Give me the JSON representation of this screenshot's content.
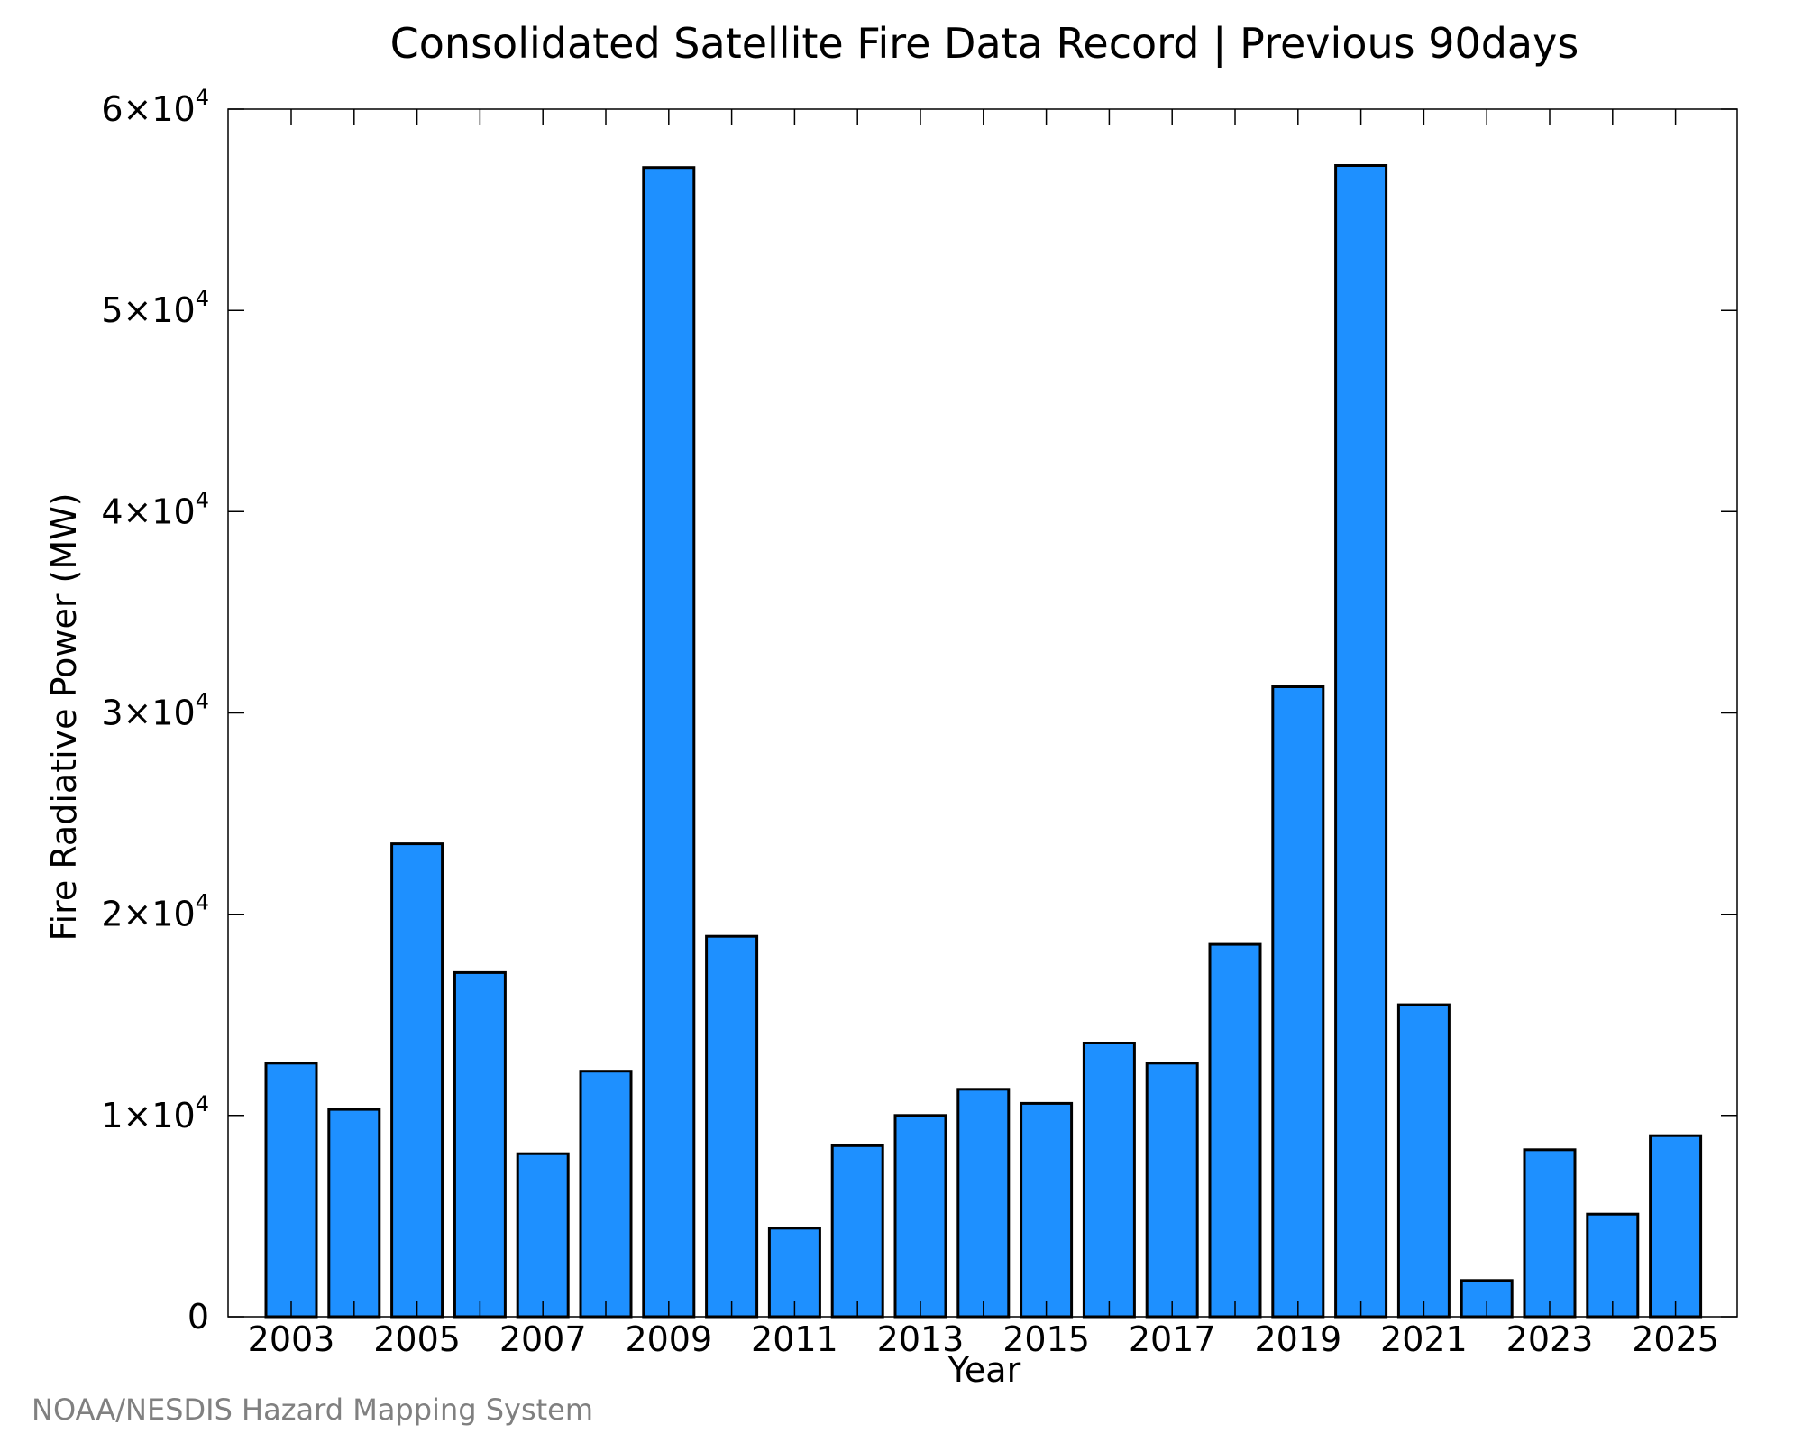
{
  "chart_data": {
    "type": "bar",
    "title": "Consolidated Satellite Fire Data Record | Previous 90days",
    "xlabel": "Year",
    "ylabel": "Fire Radiative Power (MW)",
    "categories": [
      "2003",
      "2004",
      "2005",
      "2006",
      "2007",
      "2008",
      "2009",
      "2010",
      "2011",
      "2012",
      "2013",
      "2014",
      "2015",
      "2016",
      "2017",
      "2018",
      "2019",
      "2020",
      "2021",
      "2022",
      "2023",
      "2024",
      "2025"
    ],
    "x_tick_labels": [
      "2003",
      "2005",
      "2007",
      "2009",
      "2011",
      "2013",
      "2015",
      "2017",
      "2019",
      "2021",
      "2023",
      "2025"
    ],
    "values": [
      12600,
      10300,
      23500,
      17100,
      8100,
      12200,
      57100,
      18900,
      4400,
      8500,
      10000,
      11300,
      10600,
      13600,
      12600,
      18500,
      31300,
      57200,
      15500,
      1800,
      8300,
      5100,
      9000
    ],
    "ylim": [
      0,
      60000
    ],
    "y_ticks": [
      {
        "value": 0,
        "mantissa": "0",
        "exponent": ""
      },
      {
        "value": 10000,
        "mantissa": "1×10",
        "exponent": "4"
      },
      {
        "value": 20000,
        "mantissa": "2×10",
        "exponent": "4"
      },
      {
        "value": 30000,
        "mantissa": "3×10",
        "exponent": "4"
      },
      {
        "value": 40000,
        "mantissa": "4×10",
        "exponent": "4"
      },
      {
        "value": 50000,
        "mantissa": "5×10",
        "exponent": "4"
      },
      {
        "value": 60000,
        "mantissa": "6×10",
        "exponent": "4"
      }
    ],
    "bar_color": "#1e90ff",
    "bar_edge_color": "#000000",
    "grid": false,
    "legend": "none"
  },
  "footer": {
    "credit": "NOAA/NESDIS Hazard Mapping System"
  }
}
